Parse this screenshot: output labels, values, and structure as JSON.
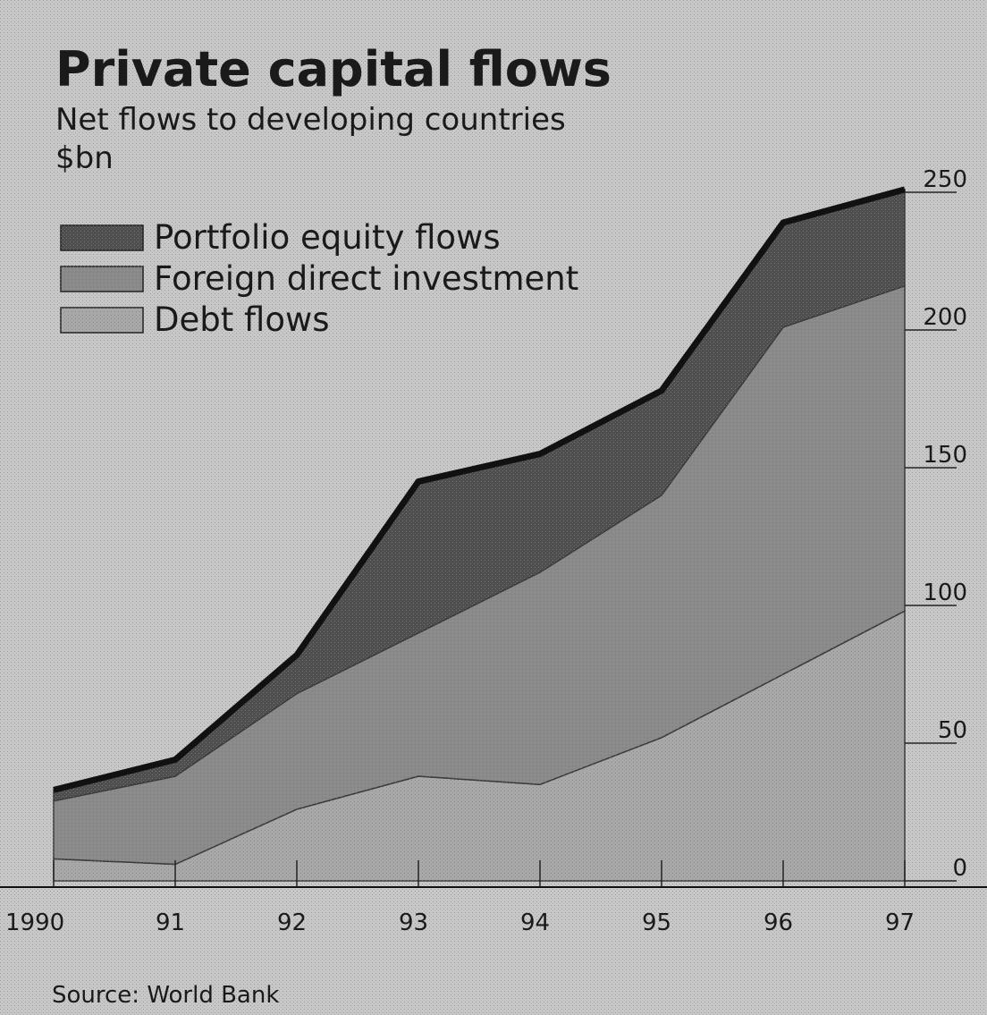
{
  "chart_data": {
    "type": "area",
    "title": "Private capital flows",
    "subtitle": "Net flows to developing countries",
    "ylabel": "$bn",
    "x": [
      "1990",
      "91",
      "92",
      "93",
      "94",
      "95",
      "96",
      "97"
    ],
    "ylim": [
      0,
      250
    ],
    "yticks": [
      0,
      50,
      100,
      150,
      200,
      250
    ],
    "stacked": true,
    "series": [
      {
        "name": "Debt flows",
        "values": [
          8,
          6,
          26,
          38,
          35,
          52,
          75,
          98
        ],
        "color": "#a8a8a8"
      },
      {
        "name": "Foreign direct investment",
        "values": [
          21,
          32,
          42,
          52,
          77,
          88,
          126,
          118
        ],
        "color": "#8a8a8a"
      },
      {
        "name": "Portfolio equity flows",
        "values": [
          4,
          6,
          14,
          55,
          43,
          38,
          38,
          35
        ],
        "color": "#4e4e4e"
      }
    ],
    "legend_position": "top-left",
    "source": "Source: World Bank"
  }
}
